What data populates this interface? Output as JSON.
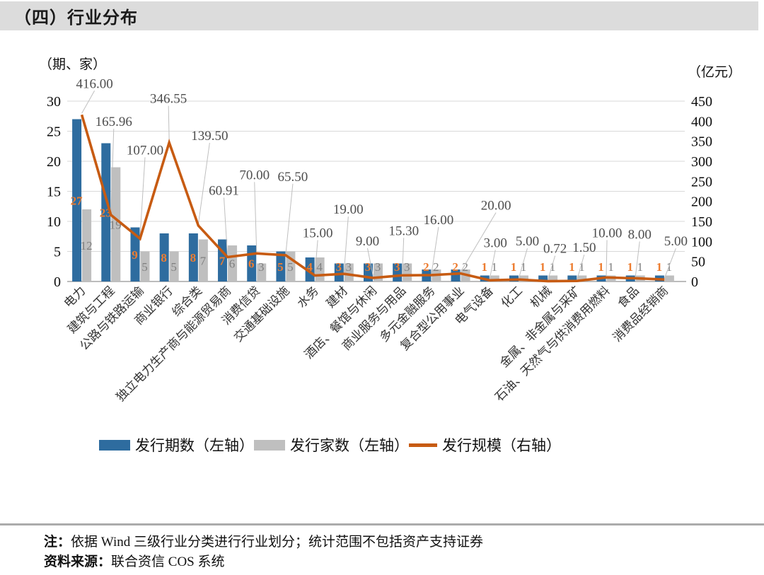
{
  "header": {
    "title": "（四）行业分布"
  },
  "chart_data": {
    "type": "combo-bar-line",
    "left_axis_unit": "（期、家）",
    "right_axis_unit": "（亿元）",
    "left_axis": {
      "min": 0,
      "max": 30,
      "ticks": [
        0,
        5,
        10,
        15,
        20,
        25,
        30
      ]
    },
    "right_axis": {
      "min": 0,
      "max": 450,
      "ticks": [
        0,
        50,
        100,
        150,
        200,
        250,
        300,
        350,
        400,
        450
      ]
    },
    "categories": [
      "电力",
      "建筑与工程",
      "公路与铁路运输",
      "商业银行",
      "综合类",
      "独立电力生产商与能源贸易商",
      "消费信贷",
      "交通基础设施",
      "水务",
      "建材",
      "酒店、餐馆与休闲",
      "商业服务与用品",
      "多元金融服务",
      "复合型公用事业",
      "电气设备",
      "化工",
      "机械",
      "金属、非金属与采矿",
      "石油、天然气与供消费用燃料",
      "食品",
      "消费品经销商"
    ],
    "series": [
      {
        "name": "发行期数（左轴）",
        "type": "bar",
        "axis": "left",
        "color": "#2E6C9F",
        "values": [
          27,
          23,
          9,
          8,
          8,
          7,
          6,
          5,
          4,
          3,
          3,
          3,
          2,
          2,
          1,
          1,
          1,
          1,
          1,
          1,
          1
        ]
      },
      {
        "name": "发行家数（左轴）",
        "type": "bar",
        "axis": "left",
        "color": "#BFBFBF",
        "values": [
          12,
          19,
          5,
          5,
          7,
          6,
          3,
          5,
          4,
          3,
          3,
          3,
          2,
          2,
          1,
          1,
          1,
          1,
          1,
          1,
          1
        ]
      },
      {
        "name": "发行规模（右轴）",
        "type": "line",
        "axis": "right",
        "color": "#C75B12",
        "values": [
          416.0,
          165.96,
          107.0,
          346.55,
          139.5,
          60.91,
          70.0,
          65.5,
          15.0,
          19.0,
          9.0,
          15.3,
          16.0,
          20.0,
          3.0,
          5.0,
          0.72,
          1.5,
          10.0,
          8.0,
          5.0
        ]
      }
    ],
    "grid": true,
    "legend_position": "bottom",
    "colors": {
      "bar_label_orange": "#ED7D31",
      "bar_label_gray": "#7f7f7f",
      "line_value_label": "#4d4d4d",
      "gridline": "#d9d9d9",
      "baseline": "#a6a6a6",
      "leader": "#bfbfbf"
    }
  },
  "footer": {
    "note_label": "注：",
    "note_text": "依据 Wind 三级行业分类进行行业划分；统计范围不包括资产支持证券",
    "source_label": "资料来源：",
    "source_text": "联合资信 COS 系统"
  }
}
